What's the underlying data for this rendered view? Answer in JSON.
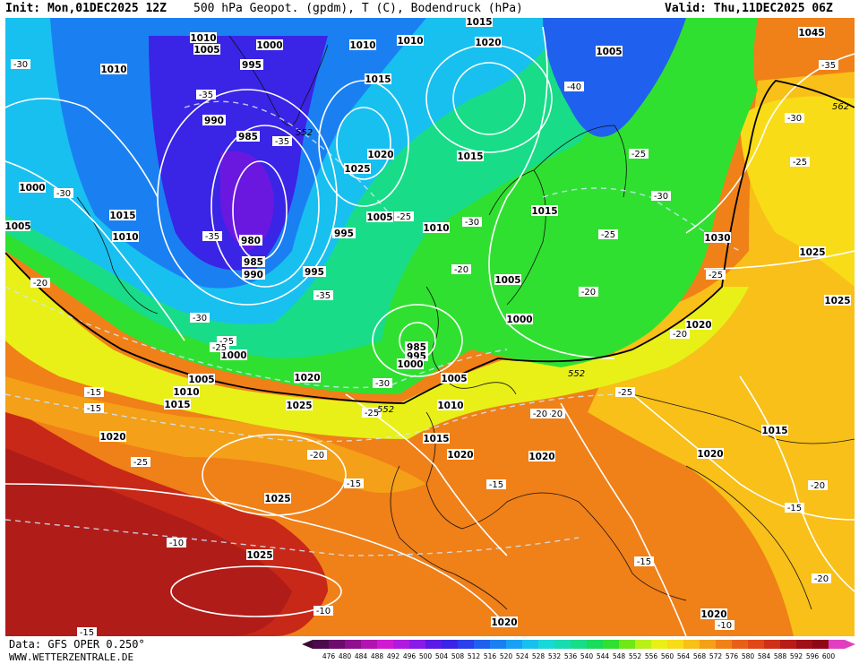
{
  "header": {
    "init": "Init: Mon,01DEC2025 12Z",
    "title": "500 hPa Geopot. (gpdm), T (C), Bodendruck (hPa)",
    "valid": "Valid: Thu,11DEC2025 06Z"
  },
  "footer": {
    "source": "Data: GFS OPER 0.250°",
    "url": "WWW.WETTERZENTRALE.DE"
  },
  "legend": {
    "values": [
      "476",
      "480",
      "484",
      "488",
      "492",
      "496",
      "500",
      "504",
      "508",
      "512",
      "516",
      "520",
      "524",
      "528",
      "532",
      "536",
      "540",
      "544",
      "548",
      "552",
      "556",
      "560",
      "564",
      "568",
      "572",
      "576",
      "580",
      "584",
      "588",
      "592",
      "596",
      "600"
    ],
    "colors": [
      "#4b0a4b",
      "#6d0c6d",
      "#8e108e",
      "#b015b0",
      "#d01ad0",
      "#b01ae0",
      "#8a1ae6",
      "#5c1ae6",
      "#3a24e6",
      "#2a40ea",
      "#2060ee",
      "#1a80f2",
      "#18a0f4",
      "#18c0f0",
      "#18d8d8",
      "#18dcb0",
      "#18dc88",
      "#18dc5a",
      "#30e030",
      "#70e818",
      "#b8f018",
      "#e8f018",
      "#f8dc18",
      "#f8c018",
      "#f4a018",
      "#f08018",
      "#e86018",
      "#e04818",
      "#d03018",
      "#b81c18",
      "#a01018",
      "#900818",
      "#e040c0"
    ]
  },
  "map": {
    "pressure_labels": [
      "1010",
      "1000",
      "1010",
      "1015",
      "1020",
      "1005",
      "1045",
      "1010",
      "995",
      "1005",
      "1010",
      "1015",
      "990",
      "985",
      "1025",
      "1020",
      "1015",
      "980",
      "1030",
      "1000",
      "1015",
      "1010",
      "1005",
      "1010",
      "995",
      "985",
      "990",
      "995",
      "1005",
      "1005",
      "1000",
      "1025",
      "1020",
      "1025",
      "985",
      "995",
      "1000",
      "1005",
      "1000",
      "1010",
      "1020",
      "1010",
      "1015",
      "1025",
      "1020",
      "1015",
      "1020",
      "1020",
      "1020",
      "1015",
      "1025",
      "1025",
      "1020",
      "1020",
      "1005",
      "1015"
    ],
    "temp_labels": [
      "-30",
      "-35",
      "-40",
      "-35",
      "-35",
      "-30",
      "-25",
      "-30",
      "-30",
      "-25",
      "-30",
      "-25",
      "-35",
      "-35",
      "-30",
      "-25",
      "-20",
      "-20",
      "-25",
      "-15",
      "-20",
      "-25",
      "-20",
      "-25",
      "-15",
      "-15",
      "-20",
      "-15",
      "-10",
      "-15",
      "-10",
      "-10",
      "-30",
      "-20",
      "-20",
      "-25",
      "-15",
      "-25",
      "-20",
      "-25",
      "-15",
      "-20"
    ],
    "isoline_labels": [
      "552",
      "552",
      "552",
      "562"
    ]
  }
}
